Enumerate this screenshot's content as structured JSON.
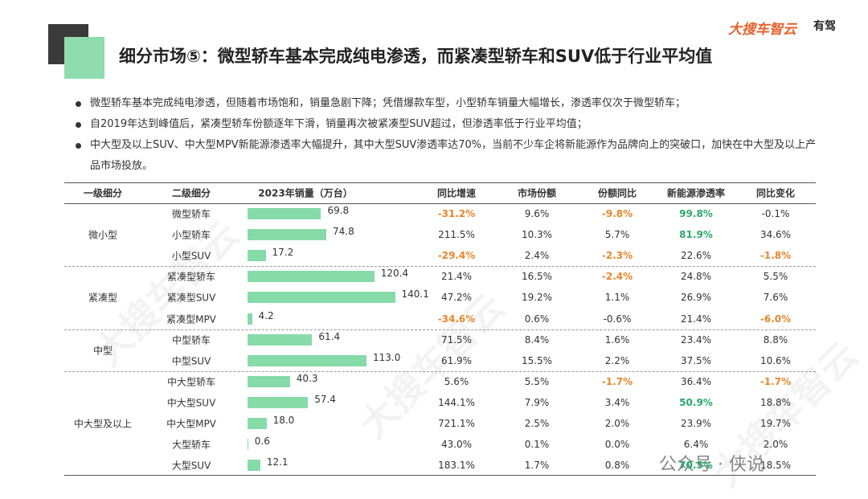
{
  "header": {
    "title": "细分市场⑤：微型轿车基本完成纯电渗透，而紧凑型轿车和SUV低于行业平均值",
    "logo": "大搜车智云",
    "logo2": "有驾"
  },
  "bullets": [
    "微型轿车基本完成纯电渗透，但随着市场饱和，销量急剧下降；凭借爆款车型，小型轿车销量大幅增长，渗透率仅次于微型轿车；",
    "自2019年达到峰值后，紧凑型轿车份额逐年下滑，销量再次被紧凑型SUV超过，但渗透率低于行业平均值；",
    "中大型及以上SUV、中大型MPV新能源渗透率大幅提升，其中大型SUV渗透率达70%，当前不少车企将新能源作为品牌向上的突破口，加快在中大型及以上产品市场投放。"
  ],
  "table": {
    "columns": [
      "一级细分",
      "二级细分",
      "2023年销量（万台）",
      "同比增速",
      "市场份额",
      "份额同比",
      "新能源渗透率",
      "同比变化"
    ],
    "bar_color": "#86dba8",
    "groups": [
      {
        "name": "微小型",
        "rows": [
          {
            "name": "微型轿车",
            "sales": 69.8,
            "sales_label": "69.8",
            "cells": [
              {
                "text": "-31.2%",
                "color": "#e8862a"
              },
              "9.6%",
              {
                "text": "-9.8%",
                "color": "#e8862a"
              },
              {
                "text": "99.8%",
                "color": "#2aa86a"
              },
              "-0.1%"
            ]
          },
          {
            "name": "小型轿车",
            "sales": 74.8,
            "sales_label": "74.8",
            "cells": [
              "211.5%",
              "10.3%",
              "5.7%",
              {
                "text": "81.9%",
                "color": "#2aa86a"
              },
              "34.6%"
            ]
          },
          {
            "name": "小型SUV",
            "sales": 17.2,
            "sales_label": "17.2",
            "cells": [
              {
                "text": "-29.4%",
                "color": "#e8862a"
              },
              "2.4%",
              {
                "text": "-2.3%",
                "color": "#e8862a"
              },
              "22.6%",
              {
                "text": "-1.8%",
                "color": "#e8862a"
              }
            ]
          }
        ]
      },
      {
        "name": "紧凑型",
        "rows": [
          {
            "name": "紧凑型轿车",
            "sales": 120.4,
            "sales_label": "120.4",
            "cells": [
              "21.4%",
              "16.5%",
              {
                "text": "-2.4%",
                "color": "#e8862a"
              },
              "24.8%",
              "5.5%"
            ]
          },
          {
            "name": "紧凑型SUV",
            "sales": 140.1,
            "sales_label": "140.1",
            "cells": [
              "47.2%",
              "19.2%",
              "1.1%",
              "26.9%",
              "7.6%"
            ]
          },
          {
            "name": "紧凑型MPV",
            "sales": 4.2,
            "sales_label": "4.2",
            "cells": [
              {
                "text": "-34.6%",
                "color": "#e8862a"
              },
              "0.6%",
              "-0.6%",
              "21.4%",
              {
                "text": "-6.0%",
                "color": "#e8862a"
              }
            ]
          }
        ]
      },
      {
        "name": "中型",
        "rows": [
          {
            "name": "中型轿车",
            "sales": 61.4,
            "sales_label": "61.4",
            "cells": [
              "71.5%",
              "8.4%",
              "1.6%",
              "23.4%",
              "8.8%"
            ]
          },
          {
            "name": "中型SUV",
            "sales": 113.0,
            "sales_label": "113.0",
            "cells": [
              "61.9%",
              "15.5%",
              "2.2%",
              "37.5%",
              "10.6%"
            ]
          }
        ]
      },
      {
        "name": "中大型及以上",
        "rows": [
          {
            "name": "中大型轿车",
            "sales": 40.3,
            "sales_label": "40.3",
            "cells": [
              "5.6%",
              "5.5%",
              {
                "text": "-1.7%",
                "color": "#e8862a"
              },
              "36.4%",
              {
                "text": "-1.7%",
                "color": "#e8862a"
              }
            ]
          },
          {
            "name": "中大型SUV",
            "sales": 57.4,
            "sales_label": "57.4",
            "cells": [
              "144.1%",
              "7.9%",
              "3.4%",
              {
                "text": "50.9%",
                "color": "#2aa86a"
              },
              "18.8%"
            ]
          },
          {
            "name": "中大型MPV",
            "sales": 18.0,
            "sales_label": "18.0",
            "cells": [
              "721.1%",
              "2.5%",
              "2.0%",
              "23.9%",
              "19.7%"
            ]
          },
          {
            "name": "大型轿车",
            "sales": 0.6,
            "sales_label": "0.6",
            "cells": [
              "43.0%",
              "0.1%",
              "0.0%",
              "6.4%",
              "2.0%"
            ]
          },
          {
            "name": "大型SUV",
            "sales": 12.1,
            "sales_label": "12.1",
            "cells": [
              "183.1%",
              "1.7%",
              "0.8%",
              {
                "text": "70.5%",
                "color": "#2aa86a"
              },
              "18.5%"
            ]
          }
        ]
      }
    ]
  },
  "watermark": "大搜车智云",
  "footer_watermark": "公众号 · 侠说"
}
